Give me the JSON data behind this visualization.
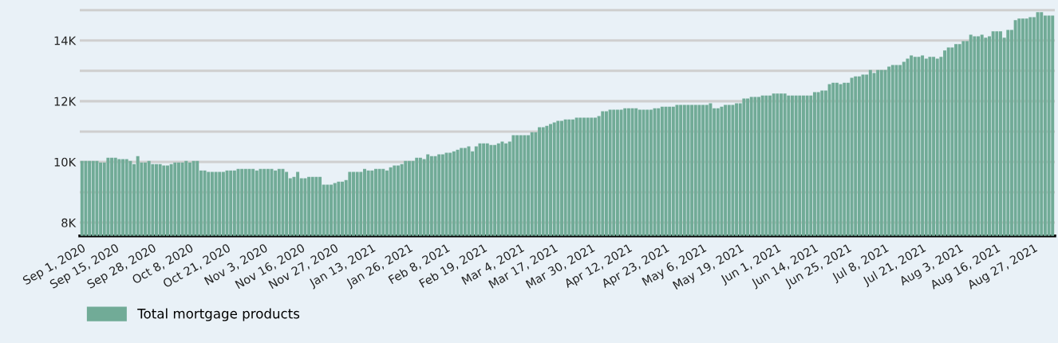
{
  "chart_data": {
    "type": "bar",
    "categories": [
      "Sep 1, 2020",
      null,
      null,
      null,
      null,
      null,
      null,
      null,
      null,
      "Sep 15, 2020",
      null,
      null,
      null,
      null,
      null,
      null,
      null,
      null,
      null,
      "Sep 28, 2020",
      null,
      null,
      null,
      null,
      null,
      null,
      null,
      null,
      null,
      "Oct 8, 2020",
      null,
      null,
      null,
      null,
      null,
      null,
      null,
      null,
      null,
      "Oct 21, 2020",
      null,
      null,
      null,
      null,
      null,
      null,
      null,
      null,
      null,
      "Nov 3, 2020",
      null,
      null,
      null,
      null,
      null,
      null,
      null,
      null,
      null,
      "Nov 16, 2020",
      null,
      null,
      null,
      null,
      null,
      null,
      null,
      null,
      "Nov 27, 2020",
      null,
      null,
      null,
      null,
      null,
      null,
      null,
      null,
      null,
      "Jan 13, 2021",
      null,
      null,
      null,
      null,
      null,
      null,
      null,
      null,
      null,
      "Jan 26, 2021",
      null,
      null,
      null,
      null,
      null,
      null,
      null,
      null,
      null,
      "Feb 8, 2021",
      null,
      null,
      null,
      null,
      null,
      null,
      null,
      null,
      null,
      "Feb 19, 2021",
      null,
      null,
      null,
      null,
      null,
      null,
      null,
      null,
      null,
      "Mar 4, 2021",
      null,
      null,
      null,
      null,
      null,
      null,
      null,
      null,
      "Mar 17, 2021",
      null,
      null,
      null,
      null,
      null,
      null,
      null,
      null,
      null,
      "Mar 30, 2021",
      null,
      null,
      null,
      null,
      null,
      null,
      null,
      null,
      null,
      "Apr 12, 2021",
      null,
      null,
      null,
      null,
      null,
      null,
      null,
      null,
      null,
      "Apr 23, 2021",
      null,
      null,
      null,
      null,
      null,
      null,
      null,
      null,
      null,
      "May 6, 2021",
      null,
      null,
      null,
      null,
      null,
      null,
      null,
      null,
      null,
      "May 19, 2021",
      null,
      null,
      null,
      null,
      null,
      null,
      null,
      null,
      null,
      "Jun 1, 2021",
      null,
      null,
      null,
      null,
      null,
      null,
      null,
      null,
      null,
      "Jun 14, 2021",
      null,
      null,
      null,
      null,
      null,
      null,
      null,
      null,
      "Jun 25, 2021",
      null,
      null,
      null,
      null,
      null,
      null,
      null,
      null,
      null,
      "Jul 8, 2021",
      null,
      null,
      null,
      null,
      null,
      null,
      null,
      null,
      null,
      "Jul 21, 2021",
      null,
      null,
      null,
      null,
      null,
      null,
      null,
      null,
      null,
      "Aug 3, 2021",
      null,
      null,
      null,
      null,
      null,
      null,
      null,
      null,
      null,
      "Aug 16, 2021",
      null,
      null,
      null,
      null,
      null,
      null,
      null,
      null,
      null,
      "Aug 27, 2021",
      null,
      null,
      null,
      null,
      null
    ],
    "series": [
      {
        "name": "Total mortgage products",
        "color": "#71ab97",
        "values": [
          10030,
          10030,
          10030,
          10030,
          10030,
          9980,
          9980,
          10140,
          10140,
          10140,
          10090,
          10090,
          10090,
          10030,
          9930,
          10190,
          9980,
          9980,
          10030,
          9930,
          9930,
          9930,
          9880,
          9880,
          9930,
          9980,
          9980,
          9980,
          10030,
          9980,
          10030,
          10030,
          9720,
          9720,
          9670,
          9670,
          9670,
          9670,
          9670,
          9720,
          9720,
          9720,
          9770,
          9770,
          9770,
          9770,
          9770,
          9720,
          9770,
          9770,
          9770,
          9770,
          9720,
          9770,
          9770,
          9670,
          9460,
          9510,
          9670,
          9460,
          9460,
          9510,
          9510,
          9510,
          9510,
          9250,
          9250,
          9250,
          9300,
          9350,
          9350,
          9400,
          9670,
          9670,
          9670,
          9670,
          9770,
          9720,
          9720,
          9770,
          9770,
          9770,
          9720,
          9820,
          9880,
          9880,
          9930,
          10030,
          10030,
          10030,
          10140,
          10140,
          10090,
          10250,
          10190,
          10190,
          10250,
          10250,
          10300,
          10300,
          10350,
          10400,
          10460,
          10460,
          10510,
          10350,
          10510,
          10610,
          10610,
          10610,
          10560,
          10560,
          10610,
          10670,
          10610,
          10670,
          10880,
          10880,
          10880,
          10880,
          10880,
          10980,
          10980,
          11140,
          11140,
          11190,
          11250,
          11300,
          11350,
          11350,
          11400,
          11400,
          11400,
          11460,
          11460,
          11460,
          11460,
          11460,
          11460,
          11510,
          11670,
          11670,
          11720,
          11720,
          11720,
          11720,
          11770,
          11770,
          11770,
          11770,
          11720,
          11720,
          11720,
          11720,
          11770,
          11770,
          11820,
          11820,
          11820,
          11820,
          11880,
          11880,
          11880,
          11880,
          11880,
          11880,
          11880,
          11880,
          11880,
          11930,
          11770,
          11770,
          11820,
          11880,
          11880,
          11880,
          11930,
          11930,
          12090,
          12090,
          12140,
          12140,
          12140,
          12190,
          12190,
          12190,
          12250,
          12250,
          12250,
          12250,
          12190,
          12190,
          12190,
          12190,
          12190,
          12190,
          12190,
          12300,
          12300,
          12350,
          12350,
          12560,
          12610,
          12610,
          12560,
          12610,
          12610,
          12770,
          12820,
          12820,
          12880,
          12880,
          13030,
          12930,
          13030,
          13030,
          13030,
          13140,
          13190,
          13190,
          13190,
          13300,
          13400,
          13510,
          13460,
          13460,
          13510,
          13400,
          13460,
          13460,
          13400,
          13460,
          13670,
          13770,
          13770,
          13880,
          13880,
          13980,
          13980,
          14190,
          14140,
          14140,
          14190,
          14090,
          14140,
          14300,
          14300,
          14300,
          14090,
          14350,
          14350,
          14670,
          14720,
          14720,
          14720,
          14770,
          14770,
          14930,
          14930,
          14820,
          14820,
          14820
        ]
      }
    ],
    "ylim": [
      7560,
      15300
    ],
    "yticks": [
      {
        "value": 8000,
        "label": "8K"
      },
      {
        "value": 9000,
        "label": null
      },
      {
        "value": 10000,
        "label": "10K"
      },
      {
        "value": 11000,
        "label": null
      },
      {
        "value": 12000,
        "label": "12K"
      },
      {
        "value": 13000,
        "label": null
      },
      {
        "value": 14000,
        "label": "14K"
      },
      {
        "value": 15000,
        "label": null
      }
    ],
    "grid": "y",
    "legend": "bottom left"
  }
}
